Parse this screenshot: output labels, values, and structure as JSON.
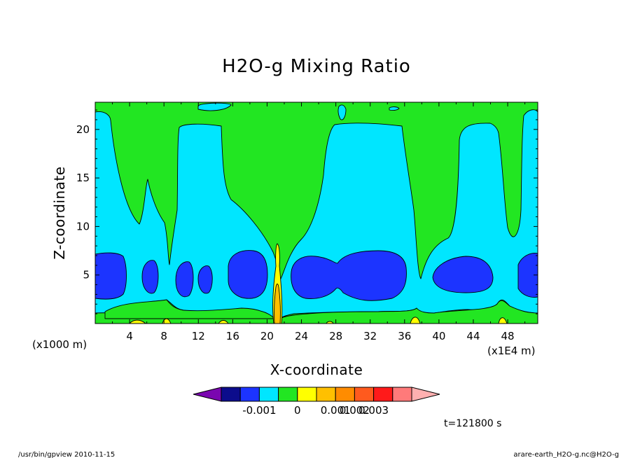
{
  "chart_data": {
    "type": "heatmap",
    "title": "H2O-g Mixing Ratio",
    "xlabel": "X-coordinate",
    "ylabel": "Z-coordinate",
    "x_unit_left": "(x1000 m)",
    "x_unit_right": "(x1E4 m)",
    "xlim": [
      0,
      51.5
    ],
    "ylim": [
      0,
      22.8
    ],
    "x_ticks": [
      4,
      8,
      12,
      16,
      20,
      24,
      28,
      32,
      36,
      40,
      44,
      48
    ],
    "y_ticks": [
      5,
      10,
      15,
      20
    ],
    "timestamp": "t=121800 s",
    "colorbar": {
      "colors": [
        "#7a06b0",
        "#0c0c8c",
        "#1c34ff",
        "#00e6ff",
        "#22e622",
        "#ffff00",
        "#ffc000",
        "#ff8c00",
        "#ff5a1e",
        "#ff1a1a",
        "#ff7a7a",
        "#ffb0b0"
      ],
      "labels": [
        "-0.001",
        "0",
        "0.001",
        "0.002",
        "0.003"
      ],
      "label_colors_after_index": [
        2,
        4,
        6,
        7,
        8
      ]
    },
    "levels": [
      {
        "name": "green",
        "color": "#22e622"
      },
      {
        "name": "cyan",
        "color": "#00e6ff"
      },
      {
        "name": "blue",
        "color": "#1c34ff"
      },
      {
        "name": "yellow",
        "color": "#ffff00"
      },
      {
        "name": "orange",
        "color": "#ffc000"
      }
    ]
  },
  "footer": {
    "left": "/usr/bin/gpview   2010-11-15",
    "right": "arare-earth_H2O-g.nc@H2O-g"
  }
}
